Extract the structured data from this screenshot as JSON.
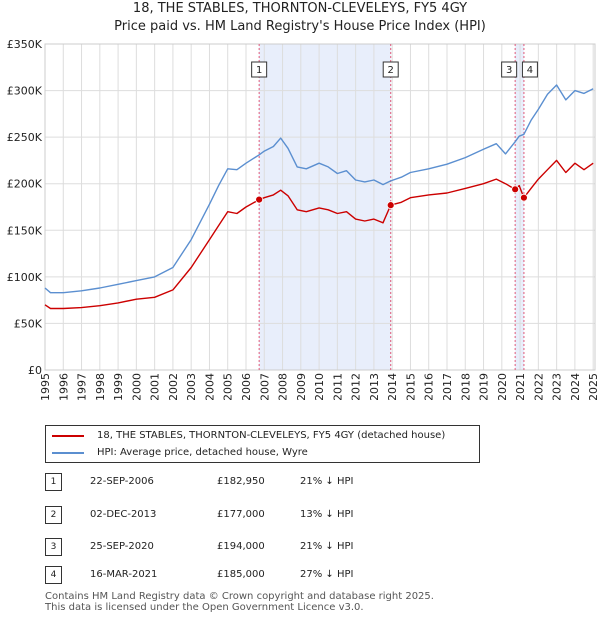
{
  "title": "18, THE STABLES, THORNTON-CLEVELEYS, FY5 4GY",
  "subtitle": "Price paid vs. HM Land Registry's House Price Index (HPI)",
  "colors": {
    "property": "#cc0000",
    "hpi": "#5b8fd0",
    "shade": "#e8eefb",
    "marker_line": "#e05a7a"
  },
  "legend": {
    "property": "18, THE STABLES, THORNTON-CLEVELEYS, FY5 4GY (detached house)",
    "hpi": "HPI: Average price, detached house, Wyre"
  },
  "transactions": [
    {
      "num": "1",
      "date": "22-SEP-2006",
      "price": "£182,950",
      "hpi": "21% ↓ HPI"
    },
    {
      "num": "2",
      "date": "02-DEC-2013",
      "price": "£177,000",
      "hpi": "13% ↓ HPI"
    },
    {
      "num": "3",
      "date": "25-SEP-2020",
      "price": "£194,000",
      "hpi": "21% ↓ HPI"
    },
    {
      "num": "4",
      "date": "16-MAR-2021",
      "price": "£185,000",
      "hpi": "27% ↓ HPI"
    }
  ],
  "footer": [
    "Contains HM Land Registry data © Crown copyright and database right 2025.",
    "This data is licensed under the Open Government Licence v3.0."
  ],
  "chart_data": {
    "type": "line",
    "title": "18, THE STABLES, THORNTON-CLEVELEYS, FY5 4GY",
    "subtitle": "Price paid vs. HM Land Registry's House Price Index (HPI)",
    "xlabel": "",
    "ylabel": "",
    "xlim": [
      1995,
      2025.1
    ],
    "ylim": [
      0,
      350000
    ],
    "y_ticks": [
      0,
      50000,
      100000,
      150000,
      200000,
      250000,
      300000,
      350000
    ],
    "y_tick_labels": [
      "£0",
      "£50K",
      "£100K",
      "£150K",
      "£200K",
      "£250K",
      "£300K",
      "£350K"
    ],
    "x_ticks": [
      1995,
      1996,
      1997,
      1998,
      1999,
      2000,
      2001,
      2002,
      2003,
      2004,
      2005,
      2006,
      2007,
      2008,
      2009,
      2010,
      2011,
      2012,
      2013,
      2014,
      2015,
      2016,
      2017,
      2018,
      2019,
      2020,
      2021,
      2022,
      2023,
      2024,
      2025
    ],
    "grid": true,
    "legend_position": "bottom",
    "shaded_ranges": [
      [
        2006.72,
        2013.92
      ],
      [
        2020.73,
        2021.21
      ]
    ],
    "series": [
      {
        "name": "18, THE STABLES, THORNTON-CLEVELEYS, FY5 4GY (detached house)",
        "color": "#cc0000",
        "x": [
          1995.0,
          1995.3,
          1996.0,
          1997.0,
          1998.0,
          1999.0,
          2000.0,
          2001.0,
          2002.0,
          2003.0,
          2004.0,
          2004.5,
          2005.0,
          2005.5,
          2006.0,
          2006.72,
          2007.0,
          2007.5,
          2007.9,
          2008.3,
          2008.8,
          2009.3,
          2010.0,
          2010.5,
          2011.0,
          2011.5,
          2012.0,
          2012.5,
          2013.0,
          2013.5,
          2013.92,
          2014.5,
          2015.0,
          2016.0,
          2017.0,
          2018.0,
          2019.0,
          2019.7,
          2020.2,
          2020.73,
          2020.95,
          2021.21,
          2021.6,
          2022.0,
          2022.5,
          2023.0,
          2023.5,
          2024.0,
          2024.5,
          2025.0
        ],
        "values": [
          70000,
          66000,
          66000,
          67000,
          69000,
          72000,
          76000,
          78000,
          86000,
          110000,
          140000,
          155000,
          170000,
          168000,
          175000,
          182950,
          185000,
          188000,
          193000,
          187000,
          172000,
          170000,
          174000,
          172000,
          168000,
          170000,
          162000,
          160000,
          162000,
          158000,
          177000,
          180000,
          185000,
          188000,
          190000,
          195000,
          200000,
          205000,
          200000,
          194000,
          198000,
          185000,
          195000,
          205000,
          215000,
          225000,
          212000,
          222000,
          215000,
          222000
        ]
      },
      {
        "name": "HPI: Average price, detached house, Wyre",
        "color": "#5b8fd0",
        "x": [
          1995.0,
          1995.3,
          1996.0,
          1997.0,
          1998.0,
          1999.0,
          2000.0,
          2001.0,
          2002.0,
          2003.0,
          2004.0,
          2004.5,
          2005.0,
          2005.5,
          2006.0,
          2006.72,
          2007.0,
          2007.5,
          2007.9,
          2008.3,
          2008.8,
          2009.3,
          2010.0,
          2010.5,
          2011.0,
          2011.5,
          2012.0,
          2012.5,
          2013.0,
          2013.5,
          2013.92,
          2014.5,
          2015.0,
          2016.0,
          2017.0,
          2018.0,
          2019.0,
          2019.7,
          2020.2,
          2020.73,
          2020.95,
          2021.21,
          2021.6,
          2022.0,
          2022.5,
          2023.0,
          2023.5,
          2024.0,
          2024.5,
          2025.0
        ],
        "values": [
          88000,
          83000,
          83000,
          85000,
          88000,
          92000,
          96000,
          100000,
          110000,
          140000,
          178000,
          198000,
          216000,
          215000,
          222000,
          231000,
          235000,
          240000,
          249000,
          238000,
          218000,
          216000,
          222000,
          218000,
          211000,
          214000,
          204000,
          202000,
          204000,
          199000,
          203000,
          207000,
          212000,
          216000,
          221000,
          228000,
          237000,
          243000,
          232000,
          245000,
          251000,
          253000,
          268000,
          280000,
          296000,
          306000,
          290000,
          300000,
          297000,
          302000
        ]
      }
    ],
    "sales": [
      {
        "label": "1",
        "x": 2006.72,
        "value": 182950
      },
      {
        "label": "2",
        "x": 2013.92,
        "value": 177000
      },
      {
        "label": "3",
        "x": 2020.73,
        "value": 194000
      },
      {
        "label": "4",
        "x": 2021.21,
        "value": 185000
      }
    ]
  }
}
